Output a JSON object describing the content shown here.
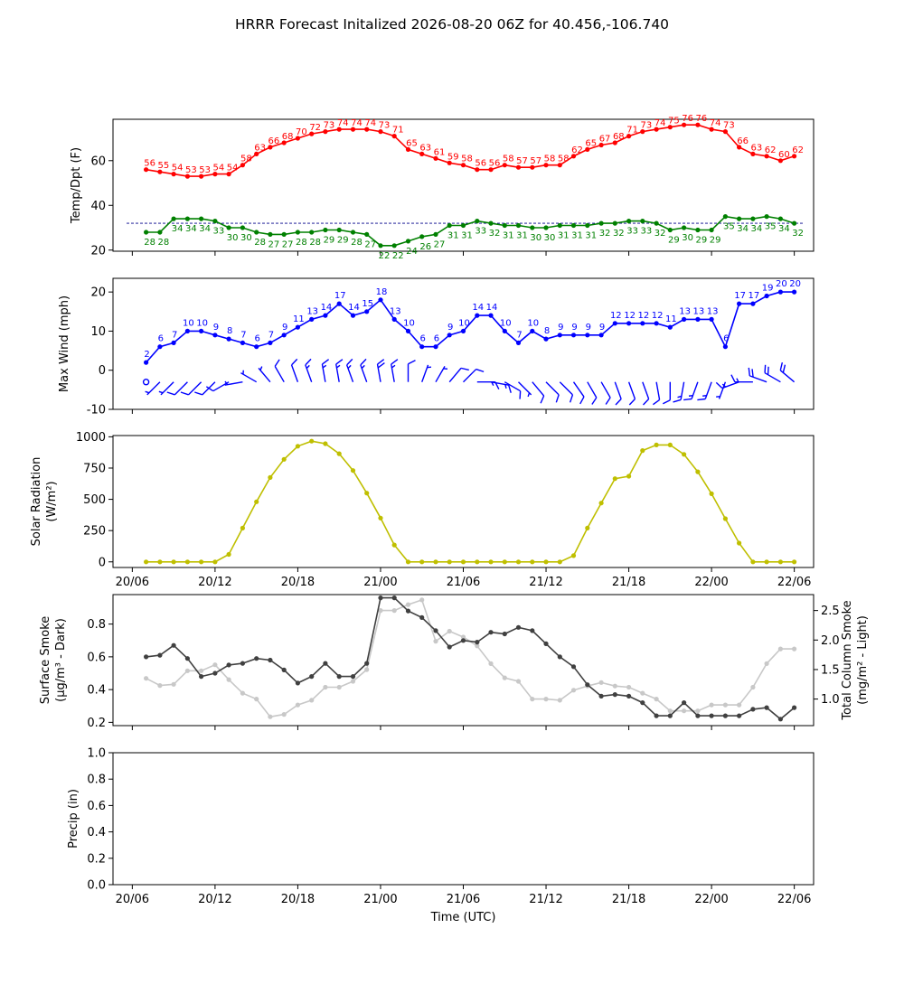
{
  "title": "HRRR Forecast Initalized 2026-08-20 06Z for 40.456,-106.740",
  "time_tick_labels": [
    "20/06",
    "20/12",
    "20/18",
    "21/00",
    "21/06",
    "21/12",
    "21/18",
    "22/00",
    "22/06"
  ],
  "colors": {
    "temp": "#ff0000",
    "dewpoint": "#008000",
    "wind": "#0000ff",
    "solar": "#bfbf00",
    "smoke_surface": "#404040",
    "smoke_column": "#c8c8c8",
    "freezing_line": "#00008b"
  },
  "chart_data": [
    {
      "type": "line",
      "name": "temp-dewpoint",
      "ylabel": "Temp/Dpt (F)",
      "ylim": [
        19.5,
        78.5
      ],
      "yticks": [
        20,
        40,
        60
      ],
      "x_hours": [
        1,
        2,
        3,
        4,
        5,
        6,
        7,
        8,
        9,
        10,
        11,
        12,
        13,
        14,
        15,
        16,
        17,
        18,
        19,
        20,
        21,
        22,
        23,
        24,
        25,
        26,
        27,
        28,
        29,
        30,
        31,
        32,
        33,
        34,
        35,
        36,
        37,
        38,
        39,
        40,
        41,
        42,
        43,
        44,
        45,
        46,
        47,
        48
      ],
      "reference_line": 32,
      "series": [
        {
          "key": "temp",
          "values": [
            56,
            55,
            54,
            53,
            53,
            54,
            54,
            58,
            63,
            66,
            68,
            70,
            72,
            73,
            74,
            74,
            74,
            73,
            71,
            65,
            63,
            61,
            59,
            58,
            56,
            56,
            58,
            57,
            57,
            58,
            58,
            62,
            65,
            67,
            68,
            71,
            73,
            74,
            75,
            76,
            76,
            74,
            73,
            66,
            63,
            62,
            60,
            62
          ]
        },
        {
          "key": "dewpoint",
          "values": [
            28,
            28,
            34,
            34,
            34,
            33,
            30,
            30,
            28,
            27,
            27,
            28,
            28,
            29,
            29,
            28,
            27,
            22,
            22,
            24,
            26,
            27,
            31,
            31,
            33,
            32,
            31,
            31,
            30,
            30,
            31,
            31,
            31,
            32,
            32,
            33,
            33,
            32,
            29,
            30,
            29,
            29,
            35,
            34,
            34,
            35,
            34,
            32
          ]
        }
      ]
    },
    {
      "type": "line",
      "name": "max-wind",
      "ylabel": "Max Wind (mph)",
      "ylim": [
        -10,
        23.5
      ],
      "yticks": [
        -10,
        0,
        10,
        20
      ],
      "x_hours": [
        1,
        2,
        3,
        4,
        5,
        6,
        7,
        8,
        9,
        10,
        11,
        12,
        13,
        14,
        15,
        16,
        17,
        18,
        19,
        20,
        21,
        22,
        23,
        24,
        25,
        26,
        27,
        28,
        29,
        30,
        31,
        32,
        33,
        34,
        35,
        36,
        37,
        38,
        39,
        40,
        41,
        42,
        43,
        44,
        45,
        46,
        47,
        48
      ],
      "values": [
        2,
        6,
        7,
        10,
        10,
        9,
        8,
        7,
        6,
        7,
        9,
        11,
        13,
        14,
        17,
        14,
        15,
        18,
        13,
        10,
        6,
        6,
        9,
        10,
        14,
        14,
        10,
        7,
        10,
        8,
        9,
        9,
        9,
        9,
        12,
        12,
        12,
        12,
        11,
        13,
        13,
        13,
        6,
        17,
        17,
        19,
        20,
        20
      ],
      "barb_directions_deg": [
        180,
        225,
        225,
        225,
        225,
        225,
        240,
        260,
        300,
        320,
        330,
        340,
        340,
        350,
        350,
        340,
        340,
        350,
        350,
        0,
        20,
        30,
        40,
        45,
        90,
        100,
        120,
        135,
        140,
        135,
        135,
        145,
        150,
        150,
        160,
        160,
        160,
        170,
        180,
        190,
        200,
        200,
        200,
        250,
        270,
        290,
        300,
        310
      ]
    },
    {
      "type": "line",
      "name": "solar-radiation",
      "ylabel": "Solar Radiation (W/m²)",
      "ylim": [
        -45,
        1010
      ],
      "yticks": [
        0,
        250,
        500,
        750,
        1000
      ],
      "x_hours": [
        1,
        2,
        3,
        4,
        5,
        6,
        7,
        8,
        9,
        10,
        11,
        12,
        13,
        14,
        15,
        16,
        17,
        18,
        19,
        20,
        21,
        22,
        23,
        24,
        25,
        26,
        27,
        28,
        29,
        30,
        31,
        32,
        33,
        34,
        35,
        36,
        37,
        38,
        39,
        40,
        41,
        42,
        43,
        44,
        45,
        46,
        47,
        48
      ],
      "values": [
        0,
        0,
        0,
        0,
        0,
        0,
        60,
        270,
        480,
        675,
        820,
        925,
        965,
        945,
        865,
        730,
        550,
        350,
        135,
        0,
        0,
        0,
        0,
        0,
        0,
        0,
        0,
        0,
        0,
        0,
        0,
        50,
        270,
        470,
        665,
        685,
        890,
        935,
        935,
        860,
        720,
        545,
        345,
        150,
        0,
        0,
        0,
        0
      ]
    },
    {
      "type": "line",
      "name": "smoke",
      "ylabel_left": "Surface Smoke (μg/m³ - Dark)",
      "ylabel_right": "Total Column Smoke (mg/m² - Light)",
      "ylim_left": [
        0.18,
        0.98
      ],
      "yticks_left": [
        0.2,
        0.4,
        0.6,
        0.8
      ],
      "ylim_right": [
        0.55,
        2.77
      ],
      "yticks_right": [
        1.0,
        1.5,
        2.0,
        2.5
      ],
      "x_hours": [
        1,
        2,
        3,
        4,
        5,
        6,
        7,
        8,
        9,
        10,
        11,
        12,
        13,
        14,
        15,
        16,
        17,
        18,
        19,
        20,
        21,
        22,
        23,
        24,
        25,
        26,
        27,
        28,
        29,
        30,
        31,
        32,
        33,
        34,
        35,
        36,
        37,
        38,
        39,
        40,
        41,
        42,
        43,
        44,
        45,
        46,
        47,
        48
      ],
      "series": [
        {
          "key": "smoke_surface",
          "axis": "left",
          "values": [
            0.6,
            0.61,
            0.67,
            0.59,
            0.48,
            0.5,
            0.55,
            0.56,
            0.59,
            0.58,
            0.52,
            0.44,
            0.48,
            0.56,
            0.48,
            0.48,
            0.56,
            0.96,
            0.96,
            0.88,
            0.84,
            0.76,
            0.66,
            0.7,
            0.69,
            0.75,
            0.74,
            0.78,
            0.76,
            0.68,
            0.6,
            0.54,
            0.43,
            0.36,
            0.37,
            0.36,
            0.32,
            0.24,
            0.24,
            0.32,
            0.24,
            0.24,
            0.24,
            0.24,
            0.28,
            0.29,
            0.22,
            0.29
          ]
        },
        {
          "key": "smoke_column",
          "axis": "right",
          "values": [
            1.35,
            1.23,
            1.25,
            1.48,
            1.48,
            1.58,
            1.33,
            1.1,
            1.0,
            0.7,
            0.74,
            0.9,
            0.98,
            1.2,
            1.2,
            1.3,
            1.5,
            2.5,
            2.5,
            2.6,
            2.68,
            1.98,
            2.15,
            2.05,
            1.9,
            1.6,
            1.36,
            1.3,
            1.0,
            1.0,
            0.98,
            1.15,
            1.22,
            1.28,
            1.22,
            1.2,
            1.1,
            1.0,
            0.8,
            0.8,
            0.8,
            0.9,
            0.9,
            0.9,
            1.2,
            1.6,
            1.85,
            1.85
          ]
        }
      ]
    },
    {
      "type": "line",
      "name": "precip",
      "ylabel": "Precip (in)",
      "xlabel": "Time (UTC)",
      "ylim": [
        0,
        1
      ],
      "yticks": [
        0.0,
        0.2,
        0.4,
        0.6,
        0.8,
        1.0
      ],
      "values": []
    }
  ]
}
